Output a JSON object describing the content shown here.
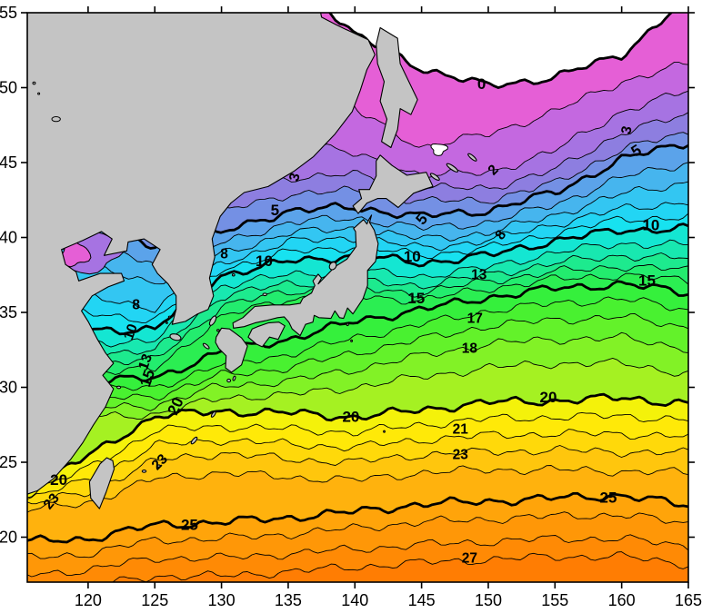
{
  "chart_data": {
    "type": "heatmap",
    "subtype": "filled-contour-map",
    "title": "",
    "xlabel": "",
    "ylabel": "",
    "x_axis": {
      "ticks": [
        120,
        125,
        130,
        135,
        140,
        145,
        150,
        155,
        160,
        165
      ],
      "range": [
        115.44,
        165
      ]
    },
    "y_axis": {
      "ticks": [
        20,
        25,
        30,
        35,
        40,
        45,
        50,
        55
      ],
      "range": [
        17,
        55
      ]
    },
    "contour_interval": 1,
    "bold_contour_interval": 5,
    "grid_on": false,
    "land_color": "#c4c4c4",
    "coast_color": "#000000",
    "below_zero_color": "#ffffff",
    "band_colors": [
      "#e55fd6",
      "#c468e0",
      "#a673e2",
      "#8d7ee0",
      "#7490e4",
      "#5ba3ea",
      "#46b5ee",
      "#33c6f2",
      "#22d5f4",
      "#17e2f0",
      "#14e6d2",
      "#18e8b0",
      "#1dea8e",
      "#23ec6e",
      "#2bee52",
      "#35f03c",
      "#49f130",
      "#63f22a",
      "#82f226",
      "#a5f122",
      "#f4f20a",
      "#ffe908",
      "#ffd90a",
      "#ffc60d",
      "#ffb20d",
      "#ffa40a",
      "#ff9707",
      "#ff8a05",
      "#ff7d03"
    ],
    "grid_lons": [
      115.5,
      120,
      125,
      130,
      135,
      140,
      145,
      150,
      155,
      160,
      165
    ],
    "isotherms": [
      {
        "level": 0,
        "lats": [
          58,
          58,
          58,
          58,
          58,
          53.5,
          51.3,
          50.1,
          50.7,
          52.2,
          56
        ]
      },
      {
        "level": 1,
        "lats": [
          58,
          58,
          58,
          58,
          58,
          48.5,
          46.0,
          46.9,
          48.4,
          50.4,
          51.6
        ]
      },
      {
        "level": 2,
        "lats": [
          58,
          58,
          58,
          47.5,
          46.8,
          45.5,
          44.2,
          44.3,
          45.8,
          48.4,
          49.8
        ]
      },
      {
        "level": 3,
        "lats": [
          58,
          58,
          58,
          43.0,
          44.0,
          44.2,
          43.3,
          43.3,
          44.5,
          47.0,
          48.2
        ]
      },
      {
        "level": 4,
        "lats": [
          58,
          58,
          42.0,
          41.7,
          42.9,
          43.1,
          42.4,
          42.5,
          43.6,
          45.9,
          47.0
        ]
      },
      {
        "level": 5,
        "lats": [
          58,
          41.0,
          39.4,
          40.3,
          41.8,
          42.0,
          41.4,
          41.8,
          43.0,
          45.2,
          46.4
        ]
      },
      {
        "level": 6,
        "lats": [
          40.8,
          39.8,
          38.2,
          39.6,
          41.0,
          41.3,
          40.6,
          41.0,
          42.2,
          44.0,
          45.0
        ]
      },
      {
        "level": 7,
        "lats": [
          38.8,
          38.0,
          37.0,
          38.9,
          40.3,
          40.6,
          39.9,
          40.3,
          41.5,
          42.9,
          43.7
        ]
      },
      {
        "level": 8,
        "lats": [
          37.0,
          36.0,
          35.3,
          38.3,
          39.7,
          40.0,
          39.3,
          39.8,
          40.9,
          41.9,
          42.4
        ]
      },
      {
        "level": 9,
        "lats": [
          35.4,
          34.9,
          34.5,
          37.9,
          39.0,
          39.4,
          38.8,
          39.3,
          40.3,
          41.2,
          41.4
        ]
      },
      {
        "level": 10,
        "lats": [
          33.9,
          33.8,
          33.9,
          37.5,
          38.4,
          38.8,
          38.3,
          38.8,
          39.8,
          40.5,
          40.6
        ]
      },
      {
        "level": 11,
        "lats": [
          33.1,
          33.0,
          33.1,
          36.8,
          37.5,
          37.8,
          37.4,
          38.0,
          39.0,
          39.6,
          39.5
        ]
      },
      {
        "level": 12,
        "lats": [
          32.4,
          32.3,
          32.4,
          36.1,
          36.9,
          37.1,
          36.8,
          37.5,
          38.3,
          38.8,
          38.6
        ]
      },
      {
        "level": 13,
        "lats": [
          31.7,
          31.6,
          31.8,
          35.4,
          36.4,
          36.6,
          36.3,
          37.1,
          37.7,
          38.1,
          37.8
        ]
      },
      {
        "level": 14,
        "lats": [
          31.1,
          31.0,
          31.2,
          34.7,
          35.9,
          36.1,
          35.8,
          36.6,
          37.2,
          37.5,
          37.1
        ]
      },
      {
        "level": 15,
        "lats": [
          30.5,
          30.4,
          30.6,
          32.4,
          33.2,
          34.4,
          35.2,
          36.0,
          36.6,
          36.9,
          36.3
        ]
      },
      {
        "level": 16,
        "lats": [
          29.9,
          29.8,
          30.0,
          31.5,
          32.2,
          33.3,
          34.2,
          35.1,
          35.6,
          35.9,
          35.2
        ]
      },
      {
        "level": 17,
        "lats": [
          29.3,
          29.2,
          29.4,
          30.8,
          31.3,
          32.3,
          33.2,
          34.1,
          34.5,
          34.7,
          34.0
        ]
      },
      {
        "level": 18,
        "lats": [
          28.7,
          28.6,
          28.8,
          30.1,
          30.4,
          31.2,
          32.1,
          32.9,
          33.2,
          33.3,
          32.6
        ]
      },
      {
        "level": 19,
        "lats": [
          28.1,
          28.0,
          28.2,
          29.3,
          29.5,
          30.0,
          30.7,
          31.3,
          31.6,
          31.6,
          30.9
        ]
      },
      {
        "level": 20,
        "lats": [
          23.3,
          25.4,
          28.1,
          28.4,
          28.3,
          28.0,
          28.5,
          29.0,
          29.1,
          29.3,
          28.9
        ]
      },
      {
        "level": 21,
        "lats": [
          22.9,
          24.6,
          27.1,
          27.4,
          27.2,
          27.0,
          27.5,
          27.9,
          28.0,
          28.1,
          27.8
        ]
      },
      {
        "level": 22,
        "lats": [
          22.6,
          23.8,
          26.1,
          26.5,
          26.2,
          26.0,
          26.5,
          26.8,
          26.9,
          26.9,
          26.7
        ]
      },
      {
        "level": 23,
        "lats": [
          22.2,
          23.0,
          25.1,
          25.6,
          25.2,
          25.0,
          25.5,
          25.7,
          25.8,
          25.7,
          25.6
        ]
      },
      {
        "level": 24,
        "lats": [
          21.8,
          22.3,
          23.9,
          24.3,
          24.0,
          23.8,
          24.3,
          24.5,
          24.5,
          24.4,
          24.3
        ]
      },
      {
        "level": 25,
        "lats": [
          19.7,
          19.9,
          20.8,
          21.0,
          21.3,
          21.7,
          22.2,
          22.4,
          22.6,
          22.8,
          22.1
        ]
      },
      {
        "level": 26,
        "lats": [
          18.6,
          18.9,
          19.8,
          19.9,
          20.2,
          20.6,
          21.0,
          21.2,
          21.4,
          21.5,
          20.9
        ]
      },
      {
        "level": 27,
        "lats": [
          17.5,
          17.8,
          18.6,
          18.6,
          18.9,
          19.2,
          19.5,
          19.7,
          19.9,
          19.9,
          19.4
        ]
      },
      {
        "level": 28,
        "lats": [
          16.4,
          16.7,
          17.4,
          17.4,
          17.7,
          18.0,
          18.3,
          18.5,
          18.7,
          18.7,
          18.2
        ]
      }
    ],
    "cold_pools": [
      {
        "lon": 120.1,
        "lat": 39.1,
        "rlon": 2.25,
        "rlat": 1.4,
        "color": "#a673e2",
        "wave": 0.14,
        "phase": 0.8
      },
      {
        "lon": 119.0,
        "lat": 38.9,
        "rlon": 1.05,
        "rlat": 0.8,
        "color": "#e55fd6",
        "wave": 0.18,
        "phase": 2.1
      },
      {
        "lon": 146.3,
        "lat": 45.9,
        "rlon": 0.55,
        "rlat": 0.38,
        "color": "#ffffff",
        "wave": 0.22,
        "phase": 0.5
      }
    ],
    "contour_labels": [
      {
        "text": "0",
        "lon": 149.5,
        "lat": 49.9,
        "bold": true,
        "rot": 0
      },
      {
        "text": "3",
        "lon": 160.7,
        "lat": 47.1,
        "bold": false,
        "rot": -78
      },
      {
        "text": "5",
        "lon": 161.3,
        "lat": 45.5,
        "bold": true,
        "rot": -32
      },
      {
        "text": "2",
        "lon": 150.6,
        "lat": 44.3,
        "bold": false,
        "rot": -45
      },
      {
        "text": "3",
        "lon": 135.8,
        "lat": 43.95,
        "bold": false,
        "rot": -75
      },
      {
        "text": "5",
        "lon": 134.0,
        "lat": 41.5,
        "bold": true,
        "rot": 0
      },
      {
        "text": "5",
        "lon": 145.3,
        "lat": 41.0,
        "bold": true,
        "rot": -50
      },
      {
        "text": "8",
        "lon": 130.2,
        "lat": 38.6,
        "bold": false,
        "rot": 0
      },
      {
        "text": "8",
        "lon": 123.6,
        "lat": 35.2,
        "bold": false,
        "rot": 0
      },
      {
        "text": "8",
        "lon": 151.2,
        "lat": 40.0,
        "bold": false,
        "rot": -55
      },
      {
        "text": "10",
        "lon": 123.5,
        "lat": 33.6,
        "bold": false,
        "rot": -70
      },
      {
        "text": "10",
        "lon": 133.2,
        "lat": 38.1,
        "bold": true,
        "rot": 0
      },
      {
        "text": "10",
        "lon": 144.3,
        "lat": 38.4,
        "bold": true,
        "rot": 0
      },
      {
        "text": "10",
        "lon": 162.2,
        "lat": 40.5,
        "bold": true,
        "rot": 0
      },
      {
        "text": "13",
        "lon": 124.6,
        "lat": 31.6,
        "bold": false,
        "rot": -70
      },
      {
        "text": "13",
        "lon": 149.3,
        "lat": 37.2,
        "bold": false,
        "rot": 0
      },
      {
        "text": "15",
        "lon": 124.8,
        "lat": 30.5,
        "bold": true,
        "rot": -70
      },
      {
        "text": "15",
        "lon": 144.6,
        "lat": 35.6,
        "bold": true,
        "rot": 0
      },
      {
        "text": "15",
        "lon": 161.9,
        "lat": 36.8,
        "bold": true,
        "rot": 0
      },
      {
        "text": "17",
        "lon": 149.0,
        "lat": 34.3,
        "bold": false,
        "rot": 0
      },
      {
        "text": "18",
        "lon": 148.6,
        "lat": 32.3,
        "bold": false,
        "rot": 0
      },
      {
        "text": "20",
        "lon": 126.9,
        "lat": 28.6,
        "bold": true,
        "rot": -65
      },
      {
        "text": "20",
        "lon": 139.7,
        "lat": 27.7,
        "bold": true,
        "rot": 0
      },
      {
        "text": "20",
        "lon": 154.5,
        "lat": 29.0,
        "bold": true,
        "rot": 0
      },
      {
        "text": "20",
        "lon": 117.8,
        "lat": 23.5,
        "bold": true,
        "rot": 0
      },
      {
        "text": "21",
        "lon": 147.9,
        "lat": 26.9,
        "bold": false,
        "rot": 0
      },
      {
        "text": "23",
        "lon": 147.9,
        "lat": 25.2,
        "bold": false,
        "rot": 0
      },
      {
        "text": "23",
        "lon": 125.6,
        "lat": 24.8,
        "bold": false,
        "rot": -45
      },
      {
        "text": "23",
        "lon": 117.5,
        "lat": 22.2,
        "bold": false,
        "rot": -50
      },
      {
        "text": "25",
        "lon": 127.6,
        "lat": 20.5,
        "bold": true,
        "rot": 0
      },
      {
        "text": "25",
        "lon": 159.0,
        "lat": 22.3,
        "bold": true,
        "rot": 0
      },
      {
        "text": "27",
        "lon": 148.6,
        "lat": 18.3,
        "bold": false,
        "rot": 0
      }
    ]
  },
  "axes": {
    "x_tick_labels": [
      "120",
      "125",
      "130",
      "135",
      "140",
      "145",
      "150",
      "155",
      "160",
      "165"
    ],
    "y_tick_labels": [
      "20",
      "25",
      "30",
      "35",
      "40",
      "45",
      "50",
      "55"
    ]
  }
}
